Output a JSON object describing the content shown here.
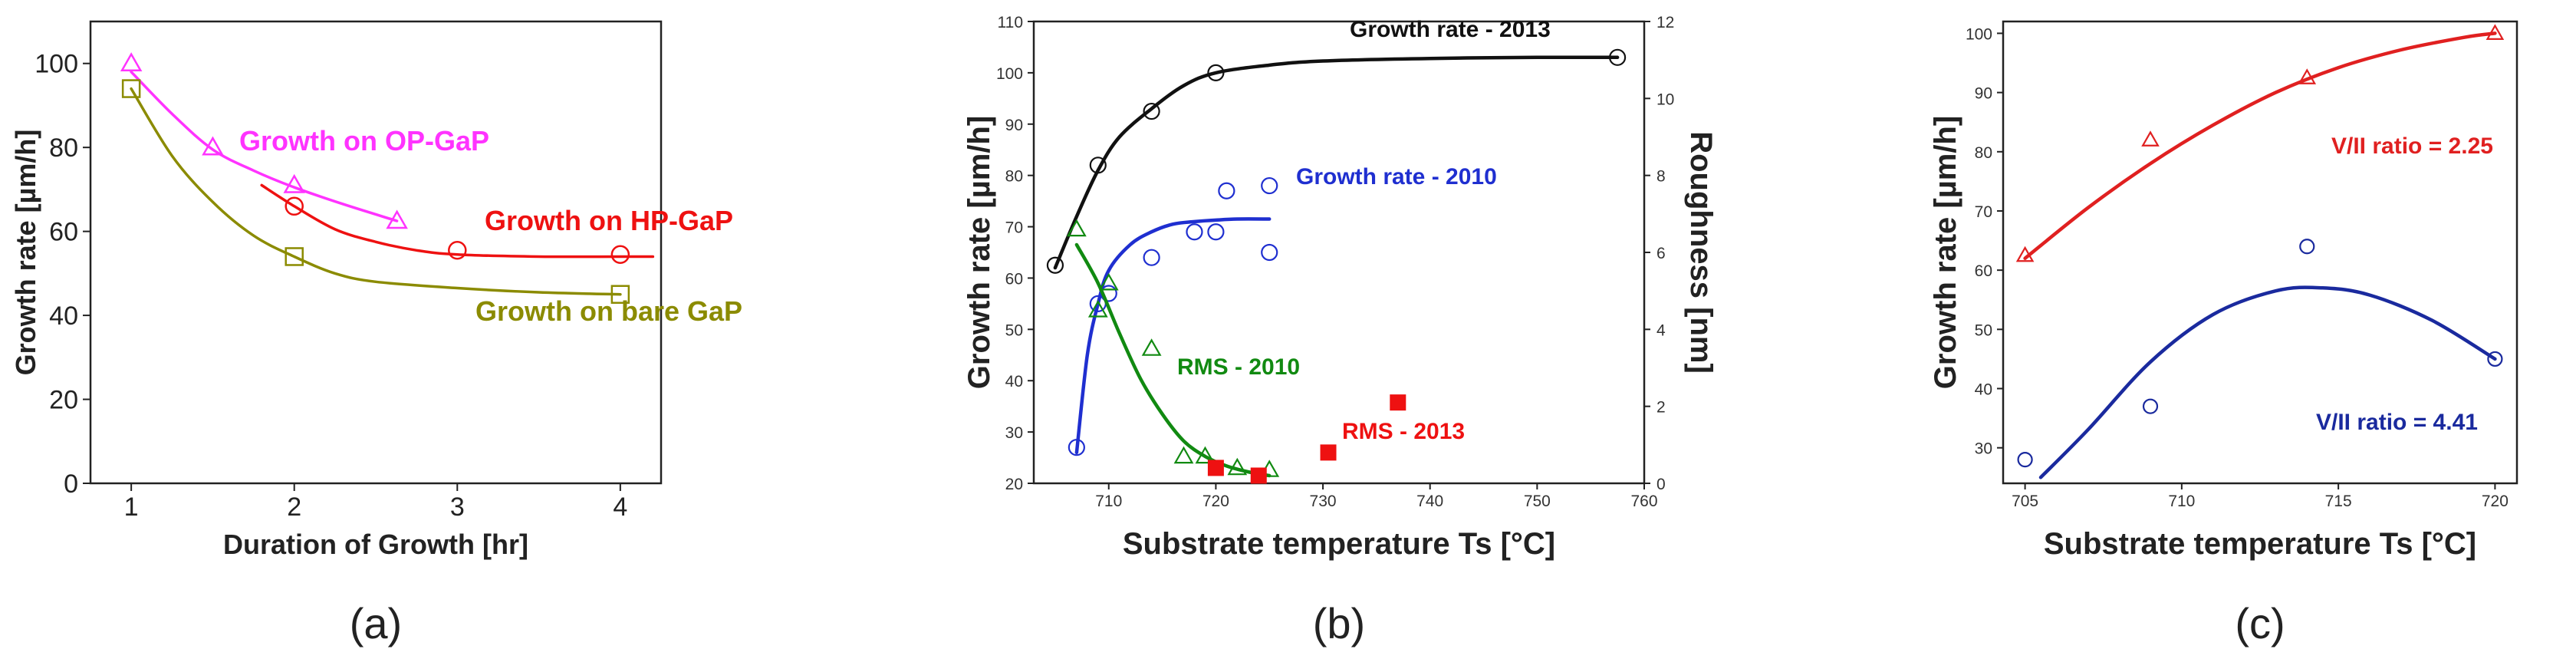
{
  "chart_data": [
    {
      "id": "a",
      "type": "line",
      "caption": "(a)",
      "xlabel": "Duration of Growth [hr]",
      "ylabel": "Growth rate [µm/h]",
      "xlim": [
        0.75,
        4.25
      ],
      "ylim": [
        0,
        110
      ],
      "xticks": [
        1,
        2,
        3,
        4
      ],
      "yticks": [
        0,
        20,
        40,
        60,
        80,
        100
      ],
      "series": [
        {
          "name": "Growth on OP-GaP",
          "color": "#ff33ff",
          "marker": "triangle",
          "x": [
            1,
            1.5,
            2,
            2.63
          ],
          "y": [
            100,
            80,
            71,
            62.5
          ],
          "curve_x": [
            1,
            1.25,
            1.5,
            1.75,
            2,
            2.3,
            2.63
          ],
          "curve_y": [
            98,
            88,
            79.5,
            74.5,
            70.5,
            66.5,
            62.5
          ]
        },
        {
          "name": "Growth on HP-GaP",
          "color": "#ee1111",
          "marker": "circle",
          "x": [
            2,
            3,
            4
          ],
          "y": [
            66,
            55.5,
            54.5
          ],
          "curve_x": [
            1.8,
            2,
            2.25,
            2.5,
            2.75,
            3,
            3.5,
            4,
            4.2
          ],
          "curve_y": [
            71,
            66,
            60.5,
            57.5,
            55.5,
            54.5,
            54,
            54,
            54
          ]
        },
        {
          "name": "Growth on bare GaP",
          "color": "#8b8b00",
          "marker": "square",
          "x": [
            1,
            2,
            4
          ],
          "y": [
            94,
            54,
            45
          ],
          "curve_x": [
            1,
            1.25,
            1.5,
            1.75,
            2,
            2.25,
            2.5,
            3,
            3.5,
            4
          ],
          "curve_y": [
            94,
            78,
            67,
            59,
            54,
            50,
            48,
            46.5,
            45.5,
            45
          ]
        }
      ]
    },
    {
      "id": "b",
      "type": "scatter",
      "caption": "(b)",
      "xlabel": "Substrate temperature Ts [°C]",
      "ylabel": "Growth rate [µm/h]",
      "y2label": "Roughness [nm]",
      "xlim": [
        703,
        760
      ],
      "ylim": [
        20,
        110
      ],
      "y2lim": [
        0,
        12
      ],
      "xticks": [
        710,
        720,
        730,
        740,
        750,
        760
      ],
      "yticks": [
        20,
        30,
        40,
        50,
        60,
        70,
        80,
        90,
        100,
        110
      ],
      "y2ticks": [
        0,
        2,
        4,
        6,
        8,
        10,
        12
      ],
      "series": [
        {
          "name": "Growth rate - 2013",
          "color": "#111111",
          "marker": "circle",
          "axis": "left",
          "x": [
            705,
            709,
            714,
            720,
            757.5
          ],
          "y": [
            62.5,
            82,
            92.5,
            100,
            103
          ],
          "curve_x": [
            705,
            707,
            709,
            711,
            714,
            717,
            720,
            725,
            730,
            740,
            750,
            757.5
          ],
          "curve_y": [
            62,
            72,
            81,
            87.5,
            93,
            97.5,
            100,
            101.5,
            102.3,
            102.8,
            103,
            103
          ]
        },
        {
          "name": "Growth rate - 2010",
          "color": "#1f2fd0",
          "marker": "circle",
          "axis": "left",
          "x": [
            707,
            709,
            710,
            714,
            718,
            720,
            721,
            725,
            725
          ],
          "y": [
            27,
            55,
            57,
            64,
            69,
            69,
            77,
            78,
            65
          ],
          "curve_x": [
            707,
            708,
            709,
            710,
            712,
            714,
            716,
            718,
            720,
            722,
            725
          ],
          "curve_y": [
            26,
            45,
            55,
            61.5,
            66.5,
            69,
            70.5,
            71,
            71.3,
            71.5,
            71.5
          ]
        },
        {
          "name": "RMS - 2010",
          "color": "#118a11",
          "marker": "triangle",
          "axis": "right",
          "x": [
            707,
            709,
            710,
            714,
            717,
            719,
            722,
            725
          ],
          "y": [
            6.6,
            4.5,
            5.2,
            3.5,
            0.7,
            0.7,
            0.4,
            0.35
          ],
          "curve_x": [
            707,
            709,
            711,
            713,
            715,
            717,
            719,
            721,
            723,
            725
          ],
          "curve_y": [
            6.2,
            5.2,
            3.9,
            2.7,
            1.8,
            1.1,
            0.7,
            0.45,
            0.3,
            0.2
          ]
        },
        {
          "name": "RMS - 2013",
          "color": "#ee1111",
          "marker": "filled-square",
          "axis": "right",
          "x": [
            720,
            724,
            730.5,
            737
          ],
          "y": [
            0.4,
            0.2,
            0.8,
            2.1
          ]
        }
      ]
    },
    {
      "id": "c",
      "type": "scatter",
      "caption": "(c)",
      "xlabel": "Substrate temperature Ts [°C]",
      "ylabel": "Growth rate [µm/h]",
      "xlim": [
        704.3,
        720.7
      ],
      "ylim": [
        24,
        102
      ],
      "xticks": [
        705,
        710,
        715,
        720
      ],
      "yticks": [
        30,
        40,
        50,
        60,
        70,
        80,
        90,
        100
      ],
      "series": [
        {
          "name": "V/II ratio = 2.25",
          "color": "#e02020",
          "marker": "triangle",
          "x": [
            705,
            709,
            714,
            720
          ],
          "y": [
            62.5,
            82,
            92.5,
            100
          ],
          "curve_x": [
            705,
            707,
            709,
            711,
            713,
            715,
            717,
            719,
            720
          ],
          "curve_y": [
            62,
            70.5,
            78,
            84.5,
            90,
            94.2,
            97.2,
            99.3,
            100
          ]
        },
        {
          "name": "V/II ratio = 4.41",
          "color": "#1a2a9e",
          "marker": "circle",
          "x": [
            705,
            709,
            714,
            720
          ],
          "y": [
            28,
            37,
            64,
            45
          ],
          "curve_x": [
            705.5,
            707,
            709,
            711,
            713,
            714.5,
            716,
            718,
            720
          ],
          "curve_y": [
            25,
            33,
            44.5,
            52.5,
            56.5,
            57,
            55.8,
            51.5,
            45
          ]
        }
      ]
    }
  ]
}
